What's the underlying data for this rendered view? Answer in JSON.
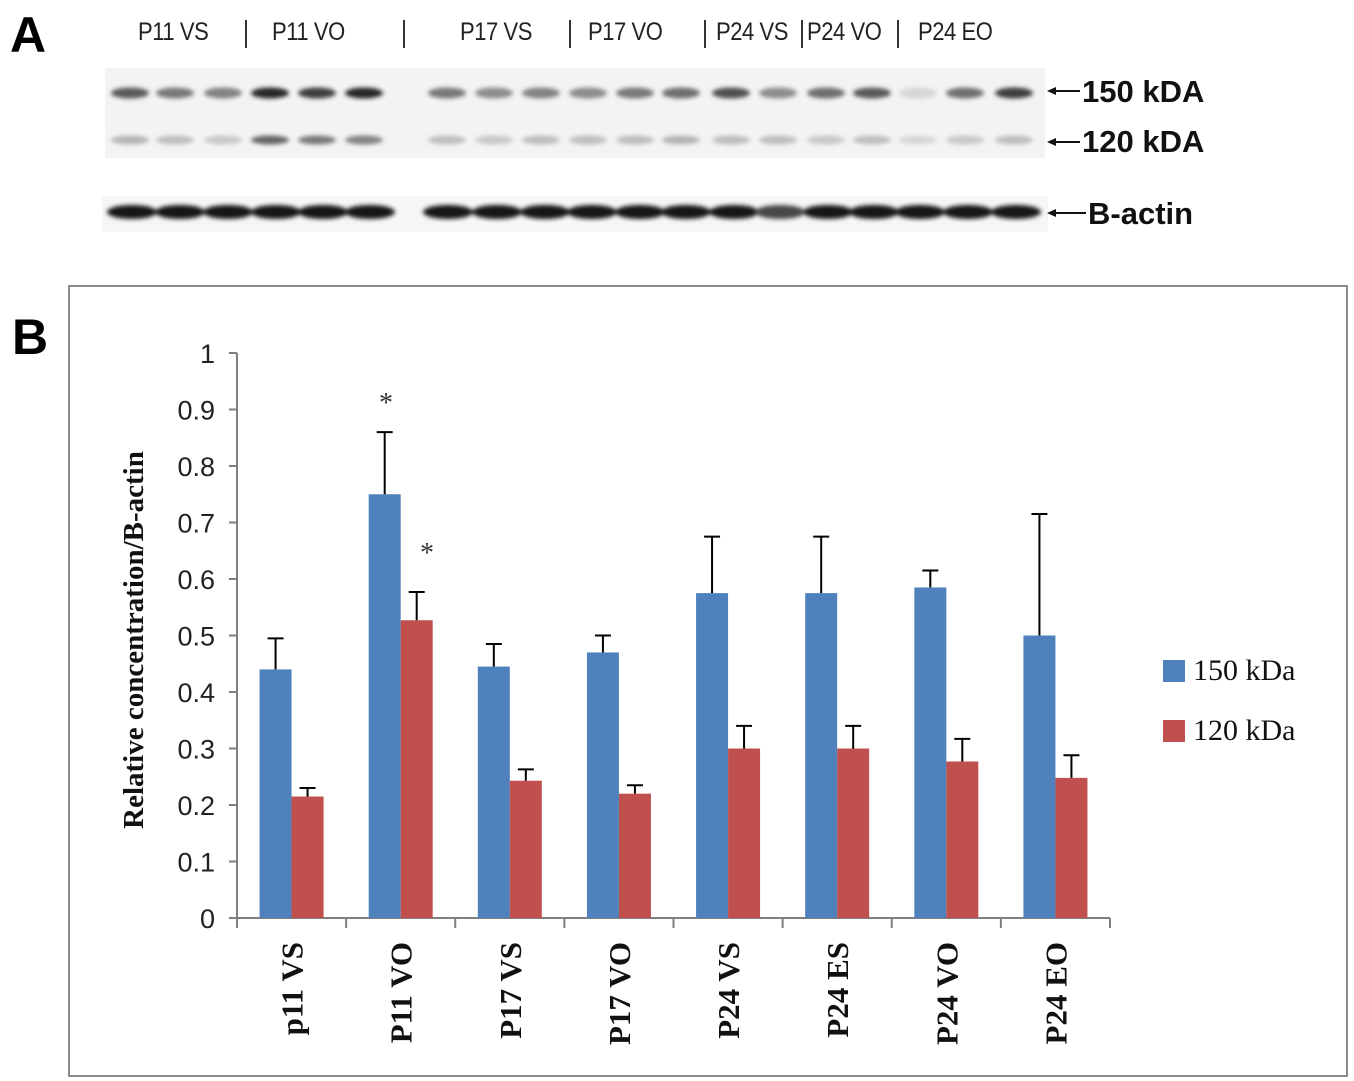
{
  "panel_a": {
    "letter": "A",
    "lane_groups": [
      "P11 VS",
      "P11 VO",
      "P17 VS",
      "P17 VO",
      "P24 VS",
      "P24 VO",
      "P24 EO"
    ],
    "band_labels": [
      "150 kDA",
      "120 kDA",
      "B-actin"
    ]
  },
  "panel_b": {
    "letter": "B"
  },
  "colors": {
    "series_150": "#4f81bd",
    "series_120": "#c0504d",
    "axis": "#7f7f7f"
  },
  "chart_data": {
    "type": "bar",
    "ylabel": "Relative concentration/B-actin",
    "xlabel": "",
    "ylim": [
      0,
      1
    ],
    "yticks": [
      "0",
      "0.1",
      "0.2",
      "0.3",
      "0.4",
      "0.5",
      "0.6",
      "0.7",
      "0.8",
      "0.9",
      "1"
    ],
    "categories": [
      "p11 VS",
      "P11 VO",
      "P17 VS",
      "P17 VO",
      "P24 VS",
      "P24 ES",
      "P24 VO",
      "P24 EO"
    ],
    "series": [
      {
        "name": "150 kDa",
        "values": [
          0.44,
          0.75,
          0.445,
          0.47,
          0.575,
          0.575,
          0.585,
          0.5
        ],
        "errors": [
          0.055,
          0.11,
          0.04,
          0.03,
          0.1,
          0.1,
          0.03,
          0.215
        ]
      },
      {
        "name": "120 kDa",
        "values": [
          0.215,
          0.527,
          0.243,
          0.22,
          0.3,
          0.3,
          0.277,
          0.248
        ],
        "errors": [
          0.015,
          0.05,
          0.02,
          0.015,
          0.04,
          0.04,
          0.04,
          0.04
        ]
      }
    ],
    "annotations": [
      "*",
      "*"
    ],
    "grid": false,
    "legend_position": "right"
  }
}
